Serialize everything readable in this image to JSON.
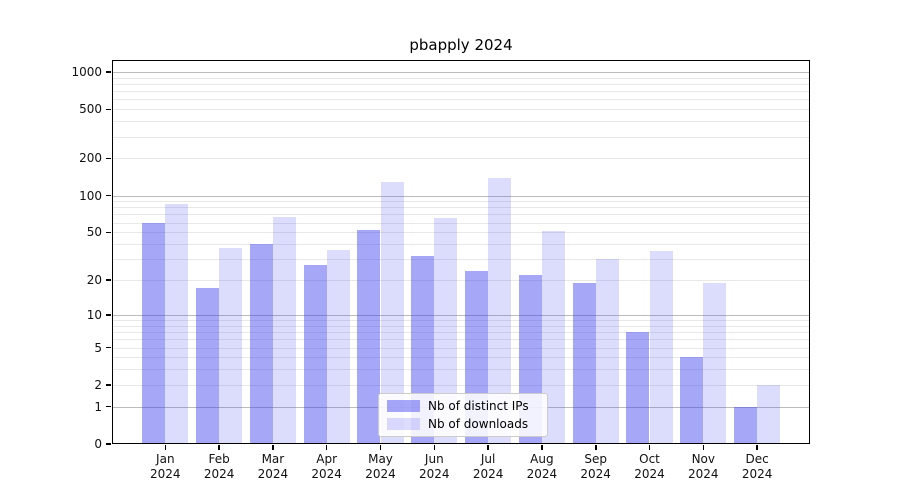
{
  "title": "pbapply 2024",
  "chart_data": {
    "type": "bar",
    "title": "pbapply 2024",
    "scale": "log1p",
    "xlabel": "",
    "ylabel": "",
    "year_line": "2024",
    "categories": [
      "Jan",
      "Feb",
      "Mar",
      "Apr",
      "May",
      "Jun",
      "Jul",
      "Aug",
      "Sep",
      "Oct",
      "Nov",
      "Dec"
    ],
    "series": [
      {
        "name": "Nb of distinct IPs",
        "values": [
          60,
          17,
          40,
          27,
          52,
          32,
          24,
          22,
          19,
          7,
          4,
          1
        ],
        "color": "rgba(60,60,240,0.45)"
      },
      {
        "name": "Nb of downloads",
        "values": [
          85,
          37,
          67,
          36,
          130,
          65,
          140,
          51,
          30,
          35,
          19,
          2
        ],
        "color": "rgba(60,60,240,0.18)"
      }
    ],
    "yticks": [
      "0",
      "1",
      "2",
      "5",
      "10",
      "20",
      "50",
      "100",
      "200",
      "500",
      "1000"
    ],
    "ytick_values": [
      0,
      1,
      2,
      5,
      10,
      20,
      50,
      100,
      200,
      500,
      1000
    ],
    "major_gridline_values": [
      1,
      10,
      100,
      1000
    ],
    "minor_gridline_values": [
      2,
      3,
      4,
      5,
      6,
      7,
      8,
      9,
      20,
      30,
      40,
      50,
      60,
      70,
      80,
      90,
      200,
      300,
      400,
      500,
      600,
      700,
      800,
      900
    ],
    "ylim": [
      0,
      1000
    ],
    "grid": true,
    "legend_position": "lower center"
  },
  "legend": {
    "items": [
      {
        "label": "Nb of distinct IPs",
        "color": "rgba(60,60,240,0.45)"
      },
      {
        "label": "Nb of downloads",
        "color": "rgba(60,60,240,0.18)"
      }
    ]
  },
  "colors": {
    "bar_dark": "rgba(60,60,240,0.45)",
    "bar_light": "rgba(60,60,240,0.18)",
    "gridline_major": "#bcbcbc",
    "gridline_minor": "#e8e8e8",
    "axis": "#000000",
    "background": "#ffffff"
  }
}
